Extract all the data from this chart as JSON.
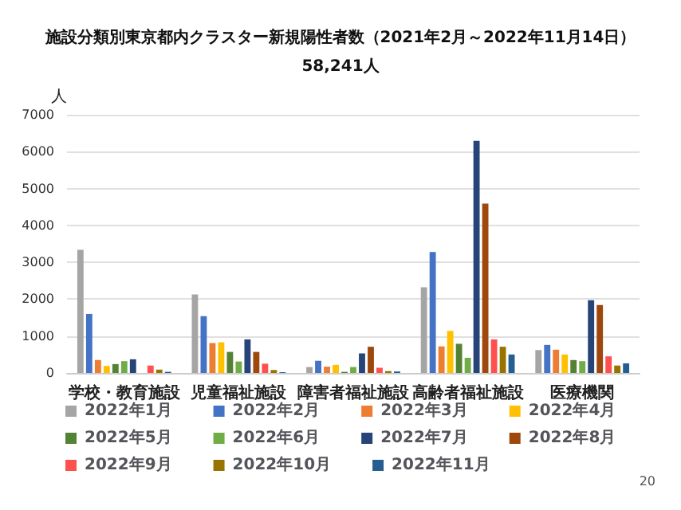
{
  "chart_data": {
    "type": "bar",
    "title": "施設分類別東京都内クラスター新規陽性者数（2021年2月～2022年11月14日）",
    "subtitle": "58,241人",
    "ylabel": "人",
    "categories": [
      "学校・教育施設",
      "児童福祉施設",
      "障害者福祉施設",
      "高齢者福祉施設",
      "医療機関"
    ],
    "series": [
      {
        "name": "2022年1月",
        "color": "#a5a5a5",
        "values": [
          3340,
          2130,
          160,
          2320,
          620
        ]
      },
      {
        "name": "2022年2月",
        "color": "#4472c4",
        "values": [
          1600,
          1540,
          330,
          3280,
          760
        ]
      },
      {
        "name": "2022年3月",
        "color": "#ed7d31",
        "values": [
          350,
          810,
          170,
          720,
          630
        ]
      },
      {
        "name": "2022年4月",
        "color": "#ffc000",
        "values": [
          190,
          830,
          220,
          1140,
          500
        ]
      },
      {
        "name": "2022年5月",
        "color": "#548235",
        "values": [
          240,
          570,
          30,
          790,
          350
        ]
      },
      {
        "name": "2022年6月",
        "color": "#70ad47",
        "values": [
          320,
          310,
          160,
          410,
          320
        ]
      },
      {
        "name": "2022年7月",
        "color": "#264478",
        "values": [
          370,
          910,
          530,
          6290,
          1970
        ]
      },
      {
        "name": "2022年8月",
        "color": "#9e480e",
        "values": [
          0,
          570,
          710,
          4590,
          1840
        ]
      },
      {
        "name": "2022年9月",
        "color": "#ff5050",
        "values": [
          200,
          250,
          140,
          910,
          450
        ]
      },
      {
        "name": "2022年10月",
        "color": "#997300",
        "values": [
          90,
          80,
          50,
          710,
          200
        ]
      },
      {
        "name": "2022年11月",
        "color": "#255e91",
        "values": [
          30,
          20,
          40,
          500,
          260
        ]
      }
    ],
    "ylim": [
      0,
      7000
    ],
    "yticks": [
      0,
      1000,
      2000,
      3000,
      4000,
      5000,
      6000,
      7000
    ],
    "grid": "y",
    "legend": "bottom",
    "annotations": [
      "20"
    ]
  }
}
